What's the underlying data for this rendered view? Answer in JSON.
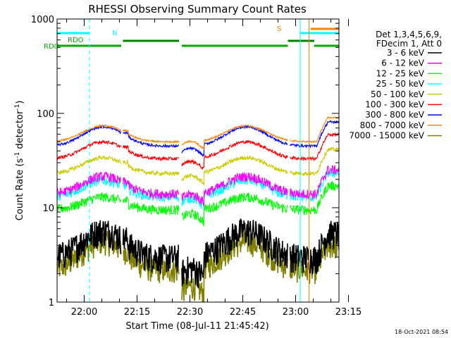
{
  "chart_data": {
    "type": "line",
    "title": "RHESSI Observing Summary Count Rates",
    "xlabel": "Start Time (08-Jul-11 21:45:42)",
    "ylabel_main": "Count Rate (s",
    "ylabel_sup1": "-1",
    "ylabel_mid": " detector",
    "ylabel_sup2": "-1",
    "ylabel_end": ")",
    "x_range_minutes": [
      -7.7,
      72.3
    ],
    "y_scale": "log",
    "ylim": [
      1,
      1000
    ],
    "x_ticks": [
      {
        "t": 0,
        "label": "22:00"
      },
      {
        "t": 15,
        "label": "22:15"
      },
      {
        "t": 30,
        "label": "22:30"
      },
      {
        "t": 45,
        "label": "22:45"
      },
      {
        "t": 60,
        "label": "23:00"
      },
      {
        "t": 75,
        "label": "23:15"
      }
    ],
    "y_ticks": [
      {
        "v": 1,
        "label": "1"
      },
      {
        "v": 10,
        "label": "10"
      },
      {
        "v": 100,
        "label": "100"
      },
      {
        "v": 1000,
        "label": "1000"
      }
    ],
    "legend_header": [
      "Det 1,3,4,5,6,9,",
      "FDecim 1, Att 0"
    ],
    "series": [
      {
        "name": "3 - 6 keV",
        "color": "#000000",
        "base": 3.0,
        "amp": 2.8,
        "floor": 2.0,
        "spread": 0.35
      },
      {
        "name": "6 - 12 keV",
        "color": "#ff00ff",
        "base": 14.0,
        "amp": 7.5,
        "floor": 12.0,
        "spread": 0.12
      },
      {
        "name": "12 - 25 keV",
        "color": "#00ff00",
        "base": 9.5,
        "amp": 3.5,
        "floor": 7.5,
        "spread": 0.12
      },
      {
        "name": "25 - 50 keV",
        "color": "#00ffff",
        "base": 13.0,
        "amp": 6.5,
        "floor": 11.0,
        "spread": 0.12
      },
      {
        "name": "50 - 100 keV",
        "color": "#cccc00",
        "base": 23.0,
        "amp": 11.0,
        "floor": 19.0,
        "spread": 0.05
      },
      {
        "name": "100 - 300 keV",
        "color": "#ff0000",
        "base": 33.0,
        "amp": 17.0,
        "floor": 27.0,
        "spread": 0.04
      },
      {
        "name": "300 - 800 keV",
        "color": "#0000ff",
        "base": 45.0,
        "amp": 27.0,
        "floor": 37.0,
        "spread": 0.03
      },
      {
        "name": "800 - 7000 keV",
        "color": "#ff8000",
        "base": 50.0,
        "amp": 24.0,
        "floor": 44.0,
        "spread": 0.02
      },
      {
        "name": "7000 - 15000 keV",
        "color": "#808000",
        "base": 2.2,
        "amp": 2.2,
        "floor": 1.3,
        "spread": 0.3
      }
    ],
    "flags": [
      {
        "name": "RDO",
        "label": "RDO",
        "color": "#00aa00",
        "level": "lower",
        "segments": [
          [
            -7.7,
            10.5
          ],
          [
            27.7,
            57.8
          ],
          [
            65.3,
            72.3
          ]
        ]
      },
      {
        "name": "RDO-upper",
        "label": "",
        "color": "#008000",
        "level": "upper",
        "segments": [
          [
            11.0,
            26.9
          ],
          [
            57.8,
            65.3
          ]
        ]
      },
      {
        "name": "N",
        "label": "N",
        "color": "#00ffff",
        "level": "top",
        "segments": [
          [
            -7.7,
            1.5
          ],
          [
            61.3,
            72.3
          ]
        ]
      },
      {
        "name": "S",
        "label": "S",
        "color": "#ff8000",
        "level": "topmost",
        "segments": [
          [
            64.3,
            72.3
          ]
        ]
      }
    ],
    "vertical_markers": [
      {
        "t": -7.7,
        "color": "#00ffff",
        "style": "solid"
      },
      {
        "t": 1.5,
        "color": "#00ffff",
        "style": "dashed"
      },
      {
        "t": 61.3,
        "color": "#00ffff",
        "style": "solid"
      },
      {
        "t": 63.8,
        "color": "#ff8000",
        "style": "solid"
      },
      {
        "t": 72.3,
        "color": "#00ffff",
        "style": "dashed"
      }
    ],
    "gaps_minutes": [
      [
        10.5,
        11.0
      ],
      [
        26.9,
        27.7
      ],
      [
        57.8,
        58.3
      ]
    ],
    "timestamp": "18-Oct-2021 08:54"
  }
}
